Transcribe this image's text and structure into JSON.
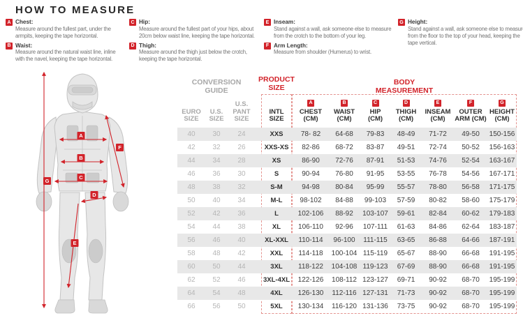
{
  "page": {
    "title": "HOW TO MEASURE"
  },
  "colors": {
    "accent_red": "#d2232a",
    "dotted_border": "#e4928e",
    "row_stripe": "#e8e8e8",
    "muted_gray": "#a7a7a7",
    "value_gray": "#b5b5b5",
    "dark_text": "#2e2e2e"
  },
  "instructions": [
    {
      "letter": "A",
      "label": "Chest:",
      "text": "Measure around the fullest part, under the\narmpits, keeping the tape horizontal.",
      "column": 1
    },
    {
      "letter": "B",
      "label": "Waist:",
      "text": "Measure around the natural waist line, inline\nwith the navel, keeping the tape horizontal.",
      "column": 1
    },
    {
      "letter": "C",
      "label": "Hip:",
      "text": "Measure around the fullest part of your hips, about\n20cm below waist line, keeping the tape horizontal.",
      "column": 2
    },
    {
      "letter": "D",
      "label": "Thigh:",
      "text": "Measure around the thigh just below the crotch,\nkeeping the tape horizontal.",
      "column": 2
    },
    {
      "letter": "E",
      "label": "Inseam:",
      "text": "Stand against a wall, ask someone else to measure\nfrom the crotch to the bottom of your leg.",
      "column": 3
    },
    {
      "letter": "F",
      "label": "Arm Length:",
      "text": "Measure from shoulder (Humerus) to wrist.",
      "column": 3
    },
    {
      "letter": "G",
      "label": "Height:",
      "text": "Stand against a wall, ask someone else to measure\nfrom the floor to the top of your head, keeping the\ntape vertical.",
      "column": 4
    }
  ],
  "figure": {
    "labels": [
      "A",
      "B",
      "C",
      "D",
      "E",
      "F",
      "G"
    ]
  },
  "table": {
    "groups": {
      "conversion": "CONVERSION\nGUIDE",
      "product": "PRODUCT\nSIZE",
      "body": "BODY\nMEASUREMENT"
    },
    "conversion_headers": [
      "EURO\nSIZE",
      "U.S.\nSIZE",
      "U.S.\nPANT SIZE"
    ],
    "product_header": "INTL\nSIZE",
    "body_headers": [
      {
        "badge": "A",
        "label": "CHEST\n(CM)"
      },
      {
        "badge": "B",
        "label": "WAIST\n(CM)"
      },
      {
        "badge": "C",
        "label": "HIP\n(CM)"
      },
      {
        "badge": "D",
        "label": "THIGH\n(CM)"
      },
      {
        "badge": "E",
        "label": "INSEAM\n(CM)"
      },
      {
        "badge": "F",
        "label": "OUTER\nARM (CM)"
      },
      {
        "badge": "G",
        "label": "HEIGHT\n(CM)"
      }
    ],
    "rows": [
      [
        "40",
        "30",
        "24",
        "XXS",
        "78- 82",
        "64-68",
        "79-83",
        "48-49",
        "71-72",
        "49-50",
        "150-156"
      ],
      [
        "42",
        "32",
        "26",
        "XXS-XS",
        "82-86",
        "68-72",
        "83-87",
        "49-51",
        "72-74",
        "50-52",
        "156-163"
      ],
      [
        "44",
        "34",
        "28",
        "XS",
        "86-90",
        "72-76",
        "87-91",
        "51-53",
        "74-76",
        "52-54",
        "163-167"
      ],
      [
        "46",
        "36",
        "30",
        "S",
        "90-94",
        "76-80",
        "91-95",
        "53-55",
        "76-78",
        "54-56",
        "167-171"
      ],
      [
        "48",
        "38",
        "32",
        "S-M",
        "94-98",
        "80-84",
        "95-99",
        "55-57",
        "78-80",
        "56-58",
        "171-175"
      ],
      [
        "50",
        "40",
        "34",
        "M-L",
        "98-102",
        "84-88",
        "99-103",
        "57-59",
        "80-82",
        "58-60",
        "175-179"
      ],
      [
        "52",
        "42",
        "36",
        "L",
        "102-106",
        "88-92",
        "103-107",
        "59-61",
        "82-84",
        "60-62",
        "179-183"
      ],
      [
        "54",
        "44",
        "38",
        "XL",
        "106-110",
        "92-96",
        "107-111",
        "61-63",
        "84-86",
        "62-64",
        "183-187"
      ],
      [
        "56",
        "46",
        "40",
        "XL-XXL",
        "110-114",
        "96-100",
        "111-115",
        "63-65",
        "86-88",
        "64-66",
        "187-191"
      ],
      [
        "58",
        "48",
        "42",
        "XXL",
        "114-118",
        "100-104",
        "115-119",
        "65-67",
        "88-90",
        "66-68",
        "191-195"
      ],
      [
        "60",
        "50",
        "44",
        "3XL",
        "118-122",
        "104-108",
        "119-123",
        "67-69",
        "88-90",
        "66-68",
        "191-195"
      ],
      [
        "62",
        "52",
        "46",
        "3XL-4XL",
        "122-126",
        "108-112",
        "123-127",
        "69-71",
        "90-92",
        "68-70",
        "195-199"
      ],
      [
        "64",
        "54",
        "48",
        "4XL",
        "126-130",
        "112-116",
        "127-131",
        "71-73",
        "90-92",
        "68-70",
        "195-199"
      ],
      [
        "66",
        "56",
        "50",
        "5XL",
        "130-134",
        "116-120",
        "131-136",
        "73-75",
        "90-92",
        "68-70",
        "195-199"
      ]
    ]
  }
}
